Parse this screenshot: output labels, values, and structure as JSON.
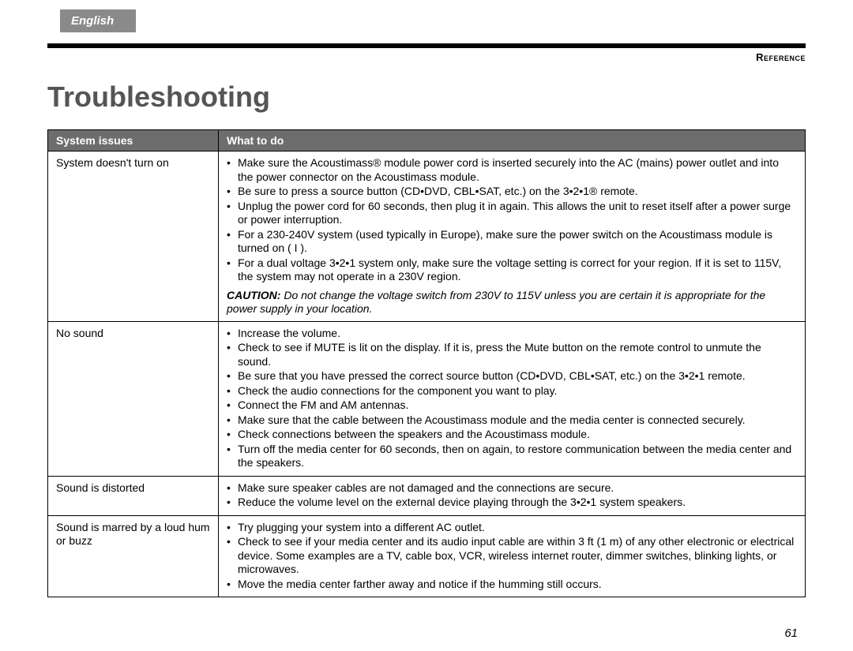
{
  "language_tab": "English",
  "reference_label": "Reference",
  "page_title": "Troubleshooting",
  "page_number": "61",
  "table": {
    "header_left": "System issues",
    "header_right": "What to do",
    "rows": [
      {
        "issue": "System doesn't turn on",
        "bullets": [
          "Make sure the Acoustimass® module power cord is inserted securely into the AC (mains) power outlet and into the power connector on the Acoustimass module.",
          "Be sure to press a source button (CD•DVD, CBL•SAT, etc.) on the 3•2•1® remote.",
          "Unplug the power cord for 60 seconds, then plug it in again. This allows the unit to reset itself after a power surge or power interruption.",
          "For a 230-240V system (used typically in Europe), make sure the power switch on the Acoustimass module is turned on ( I ).",
          "For a dual voltage 3•2•1 system only, make sure the voltage setting is correct for your region. If it is set to 115V, the system may not operate in a 230V region."
        ],
        "caution_label": "CAUTION:",
        "caution_text": " Do not change the voltage switch from 230V to 115V unless you are certain it is appropriate for the power supply in your location."
      },
      {
        "issue": "No sound",
        "bullets": [
          "Increase the volume.",
          "Check to see if MUTE is lit on the display. If it is, press the Mute button on the remote control to unmute the sound.",
          "Be sure that you have pressed the correct source button (CD•DVD, CBL•SAT, etc.) on the 3•2•1 remote.",
          "Check the audio connections for the component you want to play.",
          "Connect the FM and AM antennas.",
          "Make sure that the cable between the Acoustimass module and the media center is connected securely.",
          "Check connections between the speakers and the Acoustimass module.",
          "Turn off the media center for 60 seconds, then on again, to restore communication between the media center and the speakers."
        ]
      },
      {
        "issue": "Sound is distorted",
        "bullets": [
          "Make sure speaker cables are not damaged and the connections are secure.",
          "Reduce the volume level on the external device playing through the 3•2•1 system speakers."
        ]
      },
      {
        "issue": "Sound is marred by a loud hum or buzz",
        "bullets": [
          "Try plugging your system into a different AC outlet.",
          "Check to see if your media center and its audio input cable are within 3 ft (1 m) of any other electronic or electrical device. Some examples are a TV, cable box, VCR, wireless internet router, dimmer switches, blinking lights, or microwaves.",
          "Move the media center farther away and notice if the humming still occurs."
        ]
      }
    ]
  }
}
